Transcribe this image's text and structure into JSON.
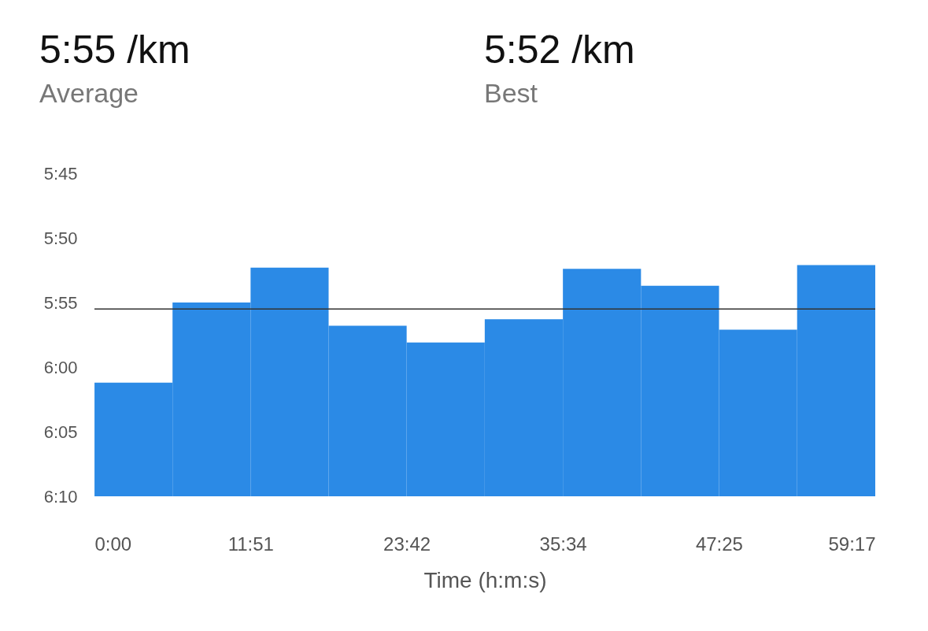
{
  "chart_data": {
    "type": "bar",
    "annotations": [
      "5:55 /km",
      "Average",
      "5:52 /km",
      "Best"
    ],
    "xlabel": "Time (h:m:s)",
    "x": [
      178,
      533.5,
      889,
      1244.5,
      1600,
      1956,
      2312,
      2667.5,
      3023,
      3379
    ],
    "base": [
      370,
      370,
      370,
      370,
      370,
      370,
      370,
      370,
      370,
      370
    ],
    "values": [
      -8.8,
      -15,
      -17.7,
      -13.2,
      -11.9,
      -13.7,
      -17.6,
      -16.3,
      -12.9,
      -17.9
    ],
    "color": "#2b8ae6",
    "xlim": [
      0,
      3557
    ],
    "xticks": [
      {
        "value": 0,
        "label": "0:00"
      },
      {
        "value": 711,
        "label": "11:51"
      },
      {
        "value": 1422,
        "label": "23:42"
      },
      {
        "value": 2134,
        "label": "35:34"
      },
      {
        "value": 2845,
        "label": "47:25"
      },
      {
        "value": 3557,
        "label": "59:17"
      }
    ],
    "ylim": [
      370,
      345
    ],
    "yticks": [
      {
        "value": 345,
        "label": "5:45"
      },
      {
        "value": 350,
        "label": "5:50"
      },
      {
        "value": 355,
        "label": "5:55"
      },
      {
        "value": 360,
        "label": "6:00"
      },
      {
        "value": 365,
        "label": "6:05"
      },
      {
        "value": 370,
        "label": "6:10"
      }
    ],
    "ref_lines": [
      {
        "axis": "y",
        "value": 355.5,
        "color": "#333333"
      }
    ],
    "grid": false
  }
}
